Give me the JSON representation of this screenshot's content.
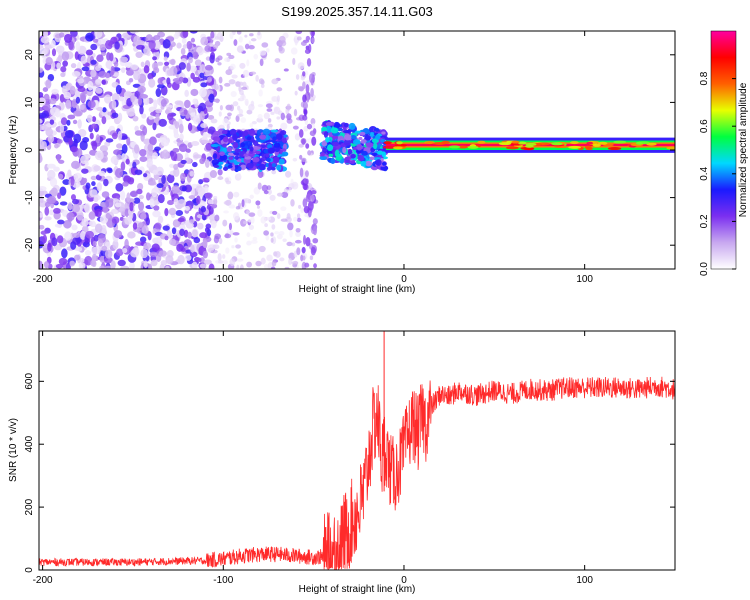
{
  "title": "S199.2025.357.14.11.G03",
  "chart_data": [
    {
      "type": "heatmap",
      "xlabel": "Height of straight line (km)",
      "ylabel": "Frequency (Hz)",
      "xlim": [
        -202,
        150
      ],
      "ylim": [
        -25,
        25
      ],
      "xticks": [
        -200,
        -100,
        0,
        100
      ],
      "yticks": [
        -20,
        -10,
        0,
        10,
        20
      ],
      "colorbar": {
        "label": "Normalized spectral amplitude",
        "range": [
          0,
          1
        ],
        "ticks": [
          "0.0",
          "0.2",
          "0.4",
          "0.6",
          "0.8"
        ],
        "ticks_values": [
          0,
          0.2,
          0.4,
          0.6,
          0.8
        ],
        "colors": [
          "#ffffff",
          "#c8a8f0",
          "#7b2ff0",
          "#1a1aff",
          "#00d8ff",
          "#00ff40",
          "#e8ff00",
          "#ff6000",
          "#ff0000",
          "#ff00a0"
        ]
      },
      "regions": [
        {
          "from": -202,
          "to": -105,
          "kind": "broadband noise",
          "level": 0.15
        },
        {
          "from": -105,
          "to": -50,
          "kind": "sparse noise",
          "level": 0.06
        },
        {
          "from": -105,
          "to": -65,
          "kind": "band around 0 Hz",
          "level": 0.3
        },
        {
          "from": -45,
          "to": -10,
          "kind": "band 0-5 Hz",
          "level": 0.4
        },
        {
          "from": -10,
          "to": 150,
          "kind": "narrow line near 1 Hz",
          "level": 0.95
        }
      ]
    },
    {
      "type": "line",
      "xlabel": "Height of straight line (km)",
      "ylabel": "SNR (10 * v/v)",
      "xlim": [
        -202,
        150
      ],
      "ylim": [
        0,
        760
      ],
      "xticks": [
        -200,
        -100,
        0,
        100
      ],
      "yticks": [
        0,
        200,
        400,
        600
      ],
      "color": "#ff2a2a",
      "x": [
        -202,
        -150,
        -110,
        -100,
        -90,
        -80,
        -70,
        -60,
        -50,
        -40,
        -35,
        -30,
        -25,
        -22,
        -20,
        -18,
        -15,
        -12,
        -10,
        -8,
        -5,
        -2,
        0,
        3,
        5,
        8,
        10,
        12,
        15,
        18,
        20,
        25,
        30,
        40,
        50,
        60,
        70,
        80,
        90,
        100,
        110,
        120,
        130,
        140,
        150
      ],
      "y": [
        25,
        25,
        30,
        35,
        45,
        50,
        50,
        45,
        40,
        45,
        90,
        140,
        190,
        250,
        330,
        420,
        500,
        350,
        400,
        320,
        300,
        340,
        380,
        440,
        470,
        430,
        500,
        460,
        520,
        540,
        560,
        550,
        570,
        555,
        570,
        560,
        575,
        570,
        580,
        580,
        580,
        580,
        575,
        585,
        575
      ],
      "peak": {
        "x": -11,
        "y": 760
      }
    }
  ]
}
